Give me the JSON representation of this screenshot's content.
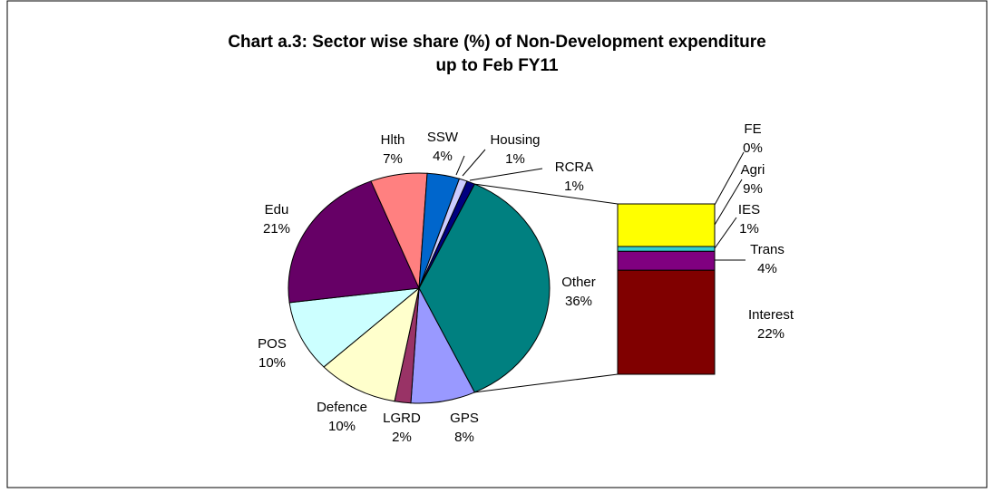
{
  "chart_data": [
    {
      "type": "pie",
      "title": [
        "Chart a.3: Sector wise share (%) of Non-Development expenditure",
        "up to Feb FY11"
      ],
      "categories": [
        "Other",
        "GPS",
        "LGRD",
        "Defence",
        "POS",
        "Edu",
        "Hlth",
        "SSW",
        "Housing",
        "RCRA"
      ],
      "values": [
        36,
        8,
        2,
        10,
        10,
        21,
        7,
        4,
        1,
        1
      ],
      "value_labels": [
        "36%",
        "8%",
        "2%",
        "10%",
        "10%",
        "21%",
        "7%",
        "4%",
        "1%",
        "1%"
      ],
      "colors": [
        "#008080",
        "#9999FF",
        "#993366",
        "#FFFFCC",
        "#CCFFFF",
        "#660066",
        "#FF8080",
        "#0066CC",
        "#CCCCFF",
        "#000080"
      ]
    },
    {
      "type": "stacked_bar",
      "categories": [
        "Interest",
        "Trans",
        "IES",
        "Agri",
        "FE"
      ],
      "values": [
        22,
        4,
        1,
        9,
        0
      ],
      "value_labels": [
        "22%",
        "4%",
        "1%",
        "9%",
        "0%"
      ],
      "colors": [
        "#800000",
        "#800080",
        "#33CCCC",
        "#FFFF00",
        "#FFFFFF"
      ]
    }
  ]
}
